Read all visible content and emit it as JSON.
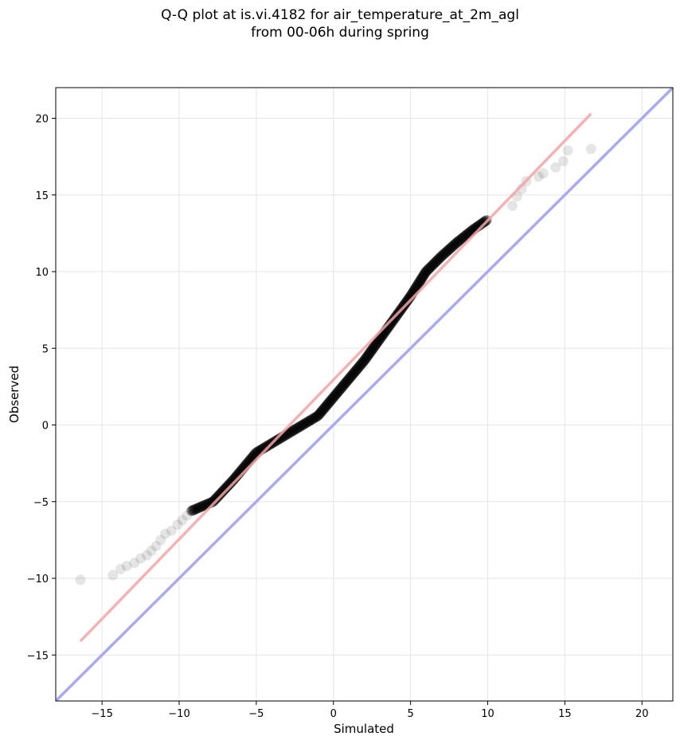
{
  "chart_data": {
    "type": "scatter",
    "title_line1": "Q-Q plot at is.vi.4182 for air_temperature_at_2m_agl",
    "title_line2": "from 00-06h during spring",
    "xlabel": "Simulated",
    "ylabel": "Observed",
    "xlim": [
      -18,
      22
    ],
    "ylim": [
      -18,
      22
    ],
    "xticks": [
      -15,
      -10,
      -5,
      0,
      5,
      10,
      15,
      20
    ],
    "yticks": [
      -15,
      -10,
      -5,
      0,
      5,
      10,
      15,
      20
    ],
    "xtick_labels": [
      "−15",
      "−10",
      "−5",
      "0",
      "5",
      "10",
      "15",
      "20"
    ],
    "ytick_labels": [
      "−15",
      "−10",
      "−5",
      "0",
      "5",
      "10",
      "15",
      "20"
    ],
    "grid": true,
    "marker_color": "#000000",
    "identity_line": {
      "from": [
        -18,
        -18
      ],
      "to": [
        22,
        22
      ],
      "color": "#aaaaf2"
    },
    "fit_line": {
      "from": [
        -16.4,
        -14.1
      ],
      "to": [
        16.7,
        20.3
      ],
      "color": "#f4a5a5"
    },
    "quantile_curve": [
      [
        -16.4,
        -10.1
      ],
      [
        -14.3,
        -9.8
      ],
      [
        -13.6,
        -9.3
      ],
      [
        -12.8,
        -8.9
      ],
      [
        -12.0,
        -8.5
      ],
      [
        -11.4,
        -7.9
      ],
      [
        -10.8,
        -7.0
      ],
      [
        -9.8,
        -6.2
      ],
      [
        -9.2,
        -5.6
      ],
      [
        -7.8,
        -5.0
      ],
      [
        -6.5,
        -3.6
      ],
      [
        -5.0,
        -1.8
      ],
      [
        -2.5,
        -0.3
      ],
      [
        -1.0,
        0.6
      ],
      [
        0.0,
        1.8
      ],
      [
        1.0,
        3.0
      ],
      [
        2.0,
        4.2
      ],
      [
        3.0,
        5.6
      ],
      [
        4.0,
        7.0
      ],
      [
        5.0,
        8.4
      ],
      [
        6.0,
        10.0
      ],
      [
        7.0,
        11.0
      ],
      [
        8.0,
        11.9
      ],
      [
        9.0,
        12.7
      ],
      [
        10.0,
        13.4
      ],
      [
        11.0,
        14.0
      ],
      [
        12.0,
        15.3
      ],
      [
        13.0,
        16.2
      ],
      [
        14.0,
        16.6
      ],
      [
        15.0,
        17.3
      ],
      [
        16.7,
        18.0
      ]
    ],
    "tail_points": [
      [
        -16.4,
        -10.1
      ],
      [
        -14.3,
        -9.8
      ],
      [
        -13.8,
        -9.4
      ],
      [
        -13.4,
        -9.2
      ],
      [
        -12.9,
        -9.0
      ],
      [
        -12.5,
        -8.7
      ],
      [
        -12.1,
        -8.5
      ],
      [
        -11.8,
        -8.2
      ],
      [
        -11.5,
        -7.9
      ],
      [
        -11.2,
        -7.5
      ],
      [
        -10.9,
        -7.1
      ],
      [
        -10.5,
        -6.9
      ],
      [
        -10.1,
        -6.5
      ],
      [
        -9.8,
        -6.2
      ],
      [
        -9.5,
        -5.9
      ],
      [
        -9.1,
        -5.6
      ],
      [
        11.6,
        14.3
      ],
      [
        11.9,
        14.9
      ],
      [
        12.2,
        15.4
      ],
      [
        12.5,
        15.9
      ],
      [
        13.3,
        16.2
      ],
      [
        13.6,
        16.4
      ],
      [
        14.4,
        16.8
      ],
      [
        14.9,
        17.2
      ],
      [
        15.2,
        17.9
      ],
      [
        16.7,
        18.0
      ]
    ]
  }
}
